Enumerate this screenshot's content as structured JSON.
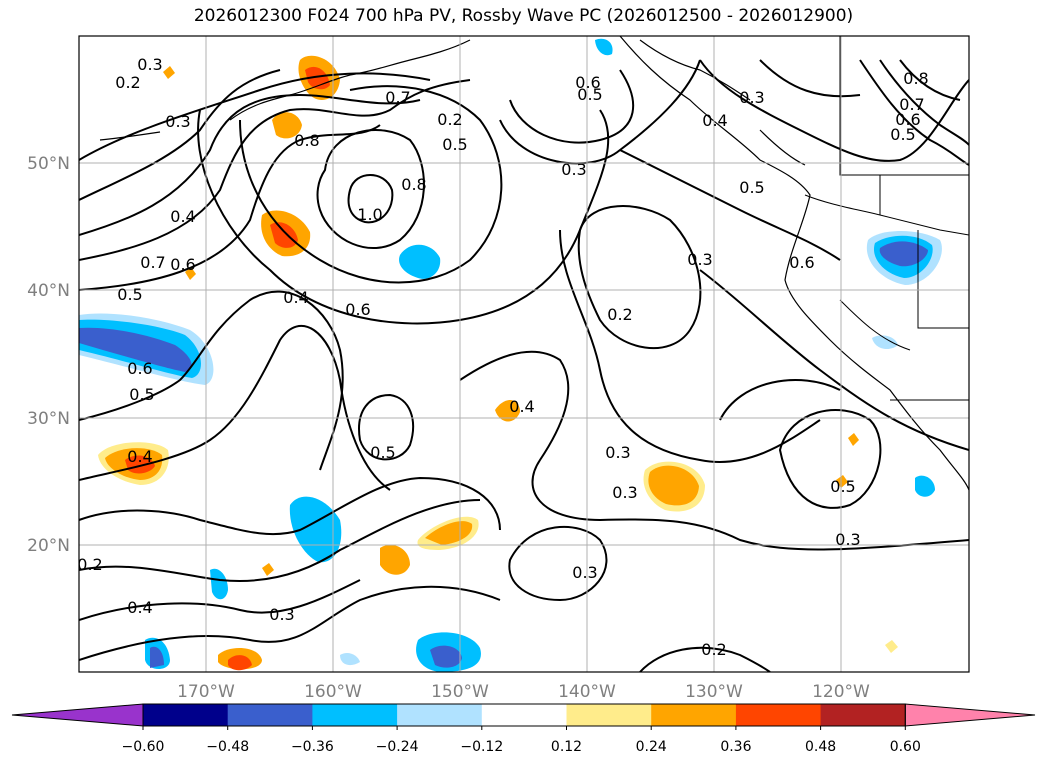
{
  "title": "2026012300 F024 700 hPa PV, Rossby Wave PC (2026012500 - 2026012900)",
  "map": {
    "latitude_labels": [
      "50°N",
      "40°N",
      "30°N",
      "20°N"
    ],
    "longitude_labels": [
      "170°W",
      "160°W",
      "150°W",
      "140°W",
      "130°W",
      "120°W"
    ],
    "contour_labels": [
      "0.2",
      "0.3",
      "0.7",
      "0.8",
      "0.6",
      "0.5",
      "0.3",
      "0.4",
      "0.5",
      "0.8",
      "0.7",
      "0.6",
      "0.5",
      "0.8",
      "1.0",
      "0.3",
      "0.4",
      "0.7",
      "0.6",
      "0.5",
      "0.4",
      "0.6",
      "0.3",
      "0.6",
      "0.5",
      "0.6",
      "0.5",
      "0.4",
      "0.3",
      "0.2",
      "0.5",
      "0.3",
      "0.4",
      "0.3",
      "0.5",
      "0.3",
      "0.2",
      "0.4",
      "0.2",
      "0.3",
      "0.3",
      "0.2"
    ]
  },
  "colorbar": {
    "tick_labels": [
      "−0.60",
      "−0.48",
      "−0.36",
      "−0.24",
      "−0.12",
      "0.12",
      "0.24",
      "0.36",
      "0.48",
      "0.60"
    ],
    "colors": [
      "#9933cc",
      "#00008b",
      "#3a5fcd",
      "#00bfff",
      "#b0e2ff",
      "#ffffff",
      "#ffec8b",
      "#ffa500",
      "#ff4500",
      "#b22222",
      "#ff82ab"
    ]
  }
}
